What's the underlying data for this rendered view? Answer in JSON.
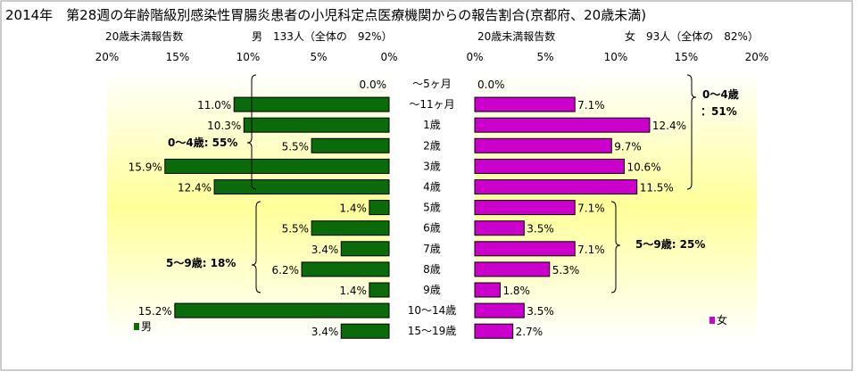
{
  "chart_data": {
    "type": "bar",
    "title": "2014年　第28週の年齢階級別感染性胃腸炎患者の小児科定点医療機関からの報告割合(京都府、20歳未満)",
    "categories": [
      "~5ヶ月",
      "~11ヶ月",
      "1歳",
      "2歳",
      "3歳",
      "4歳",
      "5歳",
      "6歳",
      "7歳",
      "8歳",
      "9歳",
      "10~14歳",
      "15~19歳"
    ],
    "category_labels": [
      "～5ヶ月",
      "～11ヶ月",
      "1歳",
      "2歳",
      "3歳",
      "4歳",
      "5歳",
      "6歳",
      "7歳",
      "8歳",
      "9歳",
      "10～14歳",
      "15～19歳"
    ],
    "xlim": [
      0,
      20
    ],
    "ticks": [
      "20%",
      "15%",
      "10%",
      "5%",
      "0%"
    ],
    "ticks_right": [
      "0%",
      "5%",
      "10%",
      "15%",
      "20%"
    ],
    "series": [
      {
        "name": "男",
        "color": "#0b6b0b",
        "header_left": "20歳未満報告数",
        "header_right": "男　133人（全体の　92%）",
        "values": [
          0.0,
          11.0,
          10.3,
          5.5,
          15.9,
          12.4,
          1.4,
          5.5,
          3.4,
          6.2,
          1.4,
          15.2,
          3.4
        ],
        "labels": [
          "0.0%",
          "11.0%",
          "10.3%",
          "5.5%",
          "15.9%",
          "12.4%",
          "1.4%",
          "5.5%",
          "3.4%",
          "6.2%",
          "1.4%",
          "15.2%",
          "3.4%"
        ],
        "annotations": [
          "0～4歳: 55%",
          "5～9歳: 18%"
        ],
        "legend": "男"
      },
      {
        "name": "女",
        "color": "#cc00cc",
        "header_left": "20歳未満報告数",
        "header_right": "女　93人（全体の　82%）",
        "values": [
          0.0,
          7.1,
          12.4,
          9.7,
          10.6,
          11.5,
          7.1,
          3.5,
          7.1,
          5.3,
          1.8,
          3.5,
          2.7
        ],
        "labels": [
          "0.0%",
          "7.1%",
          "12.4%",
          "9.7%",
          "10.6%",
          "11.5%",
          "7.1%",
          "3.5%",
          "7.1%",
          "5.3%",
          "1.8%",
          "3.5%",
          "2.7%"
        ],
        "annotations": [
          "0～4歳",
          "：51%",
          "5～9歳: 25%"
        ],
        "legend": "女"
      }
    ],
    "colors": {
      "male": "#0b6b0b",
      "female": "#cc00cc",
      "band_center": "#ffff99"
    },
    "grid": false
  }
}
